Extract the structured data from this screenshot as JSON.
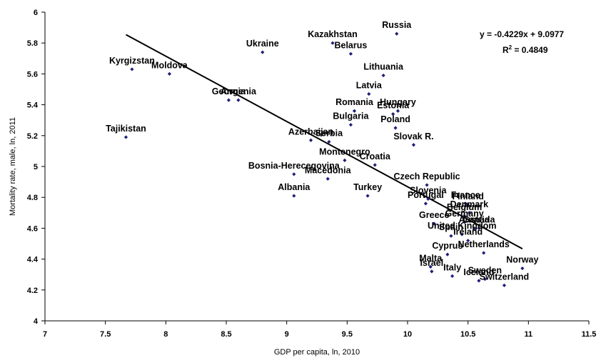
{
  "chart_data": {
    "type": "scatter",
    "title": "",
    "xlabel": "GDP per capita, ln, 2010",
    "ylabel": "Mortality rate, male, ln, 2011",
    "xlim": [
      7,
      11.5
    ],
    "ylim": [
      4,
      6
    ],
    "xticks": [
      "7",
      "7.5",
      "8",
      "8.5",
      "9",
      "9.5",
      "10",
      "10.5",
      "11",
      "11.5"
    ],
    "yticks": [
      "4",
      "4.2",
      "4.4",
      "4.6",
      "4.8",
      "5",
      "5.2",
      "5.4",
      "5.6",
      "5.8",
      "6"
    ],
    "grid": false,
    "marker_color": "#1f1f7a",
    "trendline": {
      "equation": "y = -0.4229x + 9.0977",
      "r2_prefix": "R",
      "r2_sup": "2",
      "r2_suffix": " = 0.4849",
      "slope": -0.4229,
      "intercept": 9.0977,
      "x_range": [
        7.67,
        10.95
      ],
      "color": "#000000"
    },
    "points": [
      {
        "label": "Russia",
        "x": 9.91,
        "y": 5.86
      },
      {
        "label": "Kazakhstan",
        "x": 9.38,
        "y": 5.8
      },
      {
        "label": "Belarus",
        "x": 9.53,
        "y": 5.73
      },
      {
        "label": "Ukraine",
        "x": 8.8,
        "y": 5.74
      },
      {
        "label": "Kyrgizstan",
        "x": 7.72,
        "y": 5.63
      },
      {
        "label": "Moldova",
        "x": 8.03,
        "y": 5.6
      },
      {
        "label": "Lithuania",
        "x": 9.8,
        "y": 5.59
      },
      {
        "label": "Latvia",
        "x": 9.68,
        "y": 5.47
      },
      {
        "label": "Georgia",
        "x": 8.52,
        "y": 5.43
      },
      {
        "label": "Armenia",
        "x": 8.6,
        "y": 5.43
      },
      {
        "label": "Romania",
        "x": 9.56,
        "y": 5.36
      },
      {
        "label": "Hungary",
        "x": 9.92,
        "y": 5.36
      },
      {
        "label": "Estonia",
        "x": 9.88,
        "y": 5.34
      },
      {
        "label": "Bulgaria",
        "x": 9.53,
        "y": 5.27
      },
      {
        "label": "Poland",
        "x": 9.9,
        "y": 5.25
      },
      {
        "label": "Tajikistan",
        "x": 7.67,
        "y": 5.19
      },
      {
        "label": "Azerbaijan",
        "x": 9.2,
        "y": 5.17
      },
      {
        "label": "Serbia",
        "x": 9.35,
        "y": 5.16
      },
      {
        "label": "Slovak R.",
        "x": 10.05,
        "y": 5.14
      },
      {
        "label": "Montenegro",
        "x": 9.48,
        "y": 5.04
      },
      {
        "label": "Croatia",
        "x": 9.73,
        "y": 5.01
      },
      {
        "label": "Bosnia-Herecegovina",
        "x": 9.06,
        "y": 4.95
      },
      {
        "label": "Macedonia",
        "x": 9.34,
        "y": 4.92
      },
      {
        "label": "Czech Republic",
        "x": 10.16,
        "y": 4.88
      },
      {
        "label": "Albania",
        "x": 9.06,
        "y": 4.81
      },
      {
        "label": "Turkey",
        "x": 9.67,
        "y": 4.81
      },
      {
        "label": "Slovenia",
        "x": 10.17,
        "y": 4.79
      },
      {
        "label": "Portugal",
        "x": 10.15,
        "y": 4.76
      },
      {
        "label": "France",
        "x": 10.48,
        "y": 4.76
      },
      {
        "label": "Finland",
        "x": 10.5,
        "y": 4.75
      },
      {
        "label": "Denmark",
        "x": 10.51,
        "y": 4.7
      },
      {
        "label": "Belgium",
        "x": 10.47,
        "y": 4.68
      },
      {
        "label": "Greece",
        "x": 10.22,
        "y": 4.63
      },
      {
        "label": "Germany",
        "x": 10.47,
        "y": 4.64
      },
      {
        "label": "Austria",
        "x": 10.55,
        "y": 4.6
      },
      {
        "label": "Canada",
        "x": 10.59,
        "y": 4.6
      },
      {
        "label": "United Kingdom",
        "x": 10.45,
        "y": 4.56
      },
      {
        "label": "Spain",
        "x": 10.36,
        "y": 4.55
      },
      {
        "label": "Ireland",
        "x": 10.5,
        "y": 4.52
      },
      {
        "label": "Cyprus",
        "x": 10.33,
        "y": 4.43
      },
      {
        "label": "Norway",
        "x": 10.95,
        "y": 4.34
      },
      {
        "label": "Malta",
        "x": 10.19,
        "y": 4.35
      },
      {
        "label": "Israel",
        "x": 10.2,
        "y": 4.32
      },
      {
        "label": "Italy",
        "x": 10.37,
        "y": 4.29
      },
      {
        "label": "Netherlands",
        "x": 10.63,
        "y": 4.44
      },
      {
        "label": "Sweden",
        "x": 10.64,
        "y": 4.27
      },
      {
        "label": "Switzerland",
        "x": 10.8,
        "y": 4.23
      },
      {
        "label": "Iceland",
        "x": 10.59,
        "y": 4.26
      }
    ]
  }
}
